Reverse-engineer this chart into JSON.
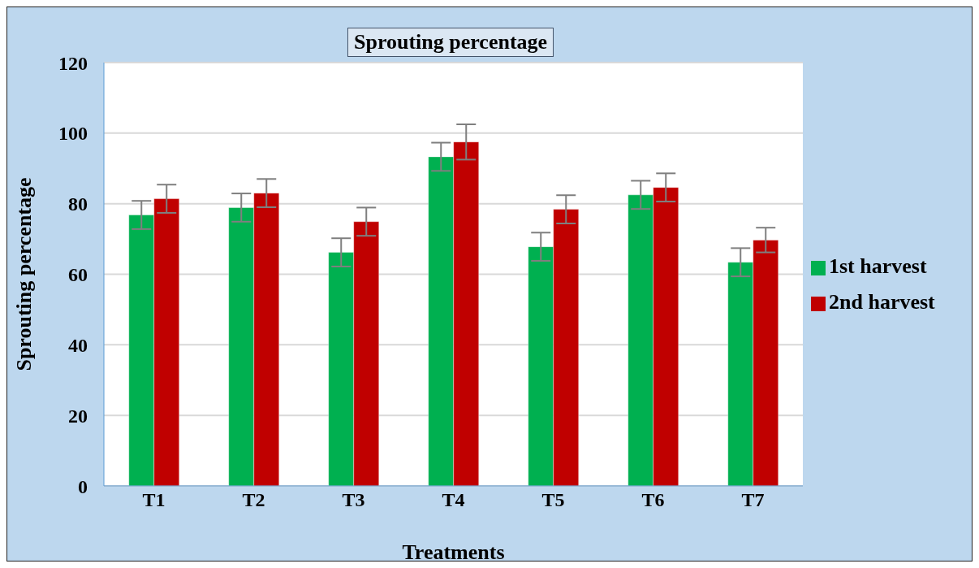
{
  "chart_data": {
    "type": "bar",
    "title": "Sprouting percentage",
    "xlabel": "Treatments",
    "ylabel": "Sprouting percentage",
    "categories": [
      "T1",
      "T2",
      "T3",
      "T4",
      "T5",
      "T6",
      "T7"
    ],
    "series": [
      {
        "name": "1st harvest",
        "color": "#00b050",
        "values": [
          76.8,
          78.9,
          66.2,
          93.3,
          67.8,
          82.5,
          63.4
        ],
        "errors": [
          4,
          4,
          4,
          4,
          4,
          4,
          4
        ]
      },
      {
        "name": "2nd harvest",
        "color": "#c00000",
        "values": [
          81.4,
          83.0,
          74.9,
          97.5,
          78.4,
          84.6,
          69.7
        ],
        "errors": [
          4,
          4,
          4,
          5,
          4,
          4,
          3.5
        ]
      }
    ],
    "ylim": [
      0,
      120
    ],
    "yticks": [
      0,
      20,
      40,
      60,
      80,
      100,
      120
    ],
    "grid": "y",
    "legend": "right"
  }
}
